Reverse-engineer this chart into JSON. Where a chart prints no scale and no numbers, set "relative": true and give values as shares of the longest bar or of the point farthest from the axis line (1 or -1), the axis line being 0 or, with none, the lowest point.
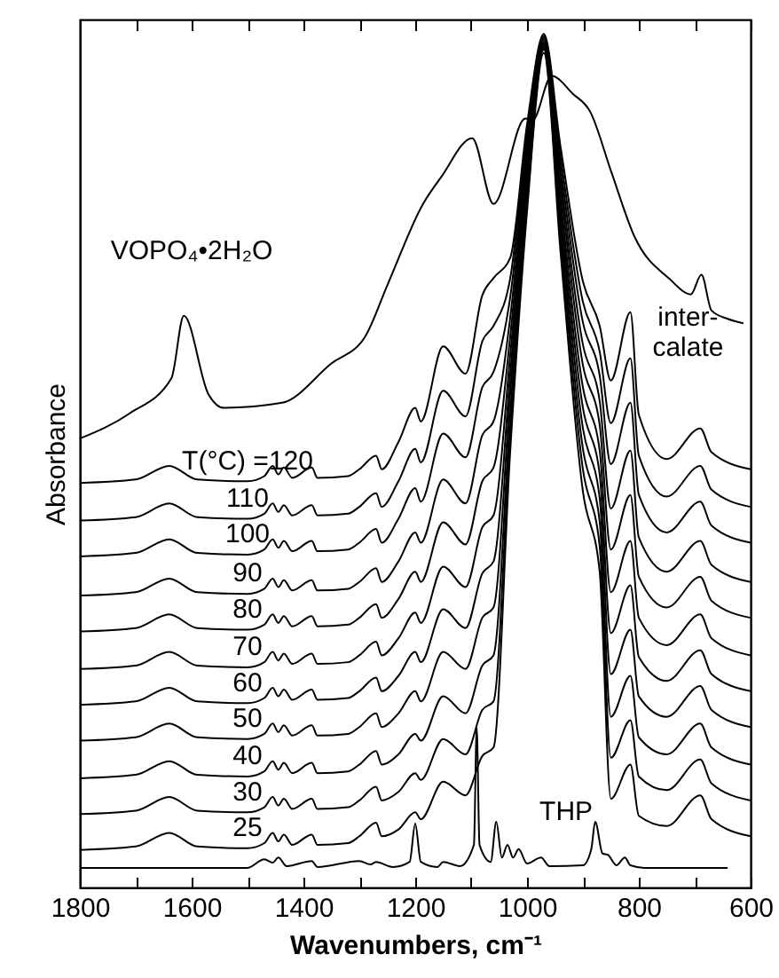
{
  "chart_data": {
    "type": "line",
    "relative": true,
    "xlabel": "Wavenumbers, cm⁻¹",
    "ylabel": "Absorbance",
    "xlim": [
      1800,
      600
    ],
    "xticks": [
      1800,
      {
        "value": 1700,
        "label": null
      },
      1600,
      {
        "value": 1500,
        "label": null
      },
      1400,
      {
        "value": 1300,
        "label": null
      },
      1200,
      {
        "value": 1100,
        "label": null
      },
      1000,
      {
        "value": 900,
        "label": null
      },
      800,
      {
        "value": 700,
        "label": null
      },
      600
    ],
    "annotations": [
      "inter-\ncalate"
    ],
    "x": [
      1800,
      1700,
      1640,
      1590,
      1500,
      1470,
      1455,
      1445,
      1435,
      1420,
      1385,
      1375,
      1320,
      1300,
      1270,
      1260,
      1230,
      1200,
      1190,
      1150,
      1110,
      1080,
      1060,
      1030,
      1000,
      970,
      940,
      900,
      870,
      850,
      815,
      800,
      750,
      690,
      670,
      600
    ],
    "series": [
      {
        "name": "VOPO₄•2H₂O",
        "color": "#000000",
        "x": [
          1800,
          1712,
          1636,
          1614,
          1570,
          1542,
          1438,
          1350,
          1290,
          1249,
          1186,
          1154,
          1098,
          1060,
          1003,
          990,
          956,
          918,
          887,
          849,
          808,
          745,
          707,
          688,
          670,
          640,
          613
        ],
        "values": [
          0.526,
          0.555,
          0.597,
          0.67,
          0.578,
          0.562,
          0.568,
          0.614,
          0.645,
          0.707,
          0.801,
          0.832,
          0.878,
          0.801,
          0.901,
          0.899,
          0.951,
          0.93,
          0.909,
          0.838,
          0.763,
          0.713,
          0.695,
          0.718,
          0.676,
          0.666,
          0.661
        ]
      },
      {
        "name": "T(°C) =120",
        "color": "#000000",
        "values": [
          0.474,
          0.478,
          0.494,
          0.478,
          0.476,
          0.482,
          0.494,
          0.484,
          0.492,
          0.48,
          0.492,
          0.48,
          0.482,
          0.49,
          0.506,
          0.49,
          0.522,
          0.562,
          0.546,
          0.634,
          0.602,
          0.694,
          0.714,
          0.738,
          0.894,
          1,
          0.868,
          0.71,
          0.658,
          0.594,
          0.674,
          0.554,
          0.502,
          0.538,
          0.51,
          0.49
        ]
      },
      {
        "name": "110",
        "color": "#000000",
        "values": [
          0.43,
          0.434,
          0.45,
          0.434,
          0.432,
          0.438,
          0.45,
          0.44,
          0.448,
          0.436,
          0.448,
          0.436,
          0.438,
          0.446,
          0.462,
          0.446,
          0.476,
          0.514,
          0.498,
          0.582,
          0.552,
          0.64,
          0.658,
          0.714,
          0.884,
          0.998,
          0.856,
          0.686,
          0.628,
          0.544,
          0.62,
          0.506,
          0.458,
          0.494,
          0.466,
          0.446
        ]
      },
      {
        "name": "100",
        "color": "#000000",
        "values": [
          0.388,
          0.392,
          0.408,
          0.392,
          0.39,
          0.396,
          0.408,
          0.398,
          0.406,
          0.394,
          0.406,
          0.394,
          0.396,
          0.404,
          0.42,
          0.404,
          0.432,
          0.468,
          0.452,
          0.532,
          0.504,
          0.586,
          0.604,
          0.692,
          0.874,
          0.996,
          0.844,
          0.662,
          0.6,
          0.496,
          0.568,
          0.46,
          0.416,
          0.452,
          0.424,
          0.404
        ]
      },
      {
        "name": "90",
        "color": "#000000",
        "values": [
          0.342,
          0.346,
          0.362,
          0.346,
          0.344,
          0.35,
          0.362,
          0.352,
          0.36,
          0.348,
          0.36,
          0.348,
          0.35,
          0.358,
          0.374,
          0.358,
          0.382,
          0.416,
          0.404,
          0.478,
          0.45,
          0.53,
          0.546,
          0.668,
          0.864,
          0.994,
          0.832,
          0.636,
          0.57,
          0.444,
          0.512,
          0.41,
          0.37,
          0.406,
          0.378,
          0.358
        ]
      },
      {
        "name": "80",
        "color": "#000000",
        "values": [
          0.3,
          0.304,
          0.32,
          0.304,
          0.302,
          0.308,
          0.32,
          0.31,
          0.318,
          0.306,
          0.318,
          0.306,
          0.308,
          0.316,
          0.332,
          0.316,
          0.338,
          0.37,
          0.358,
          0.428,
          0.402,
          0.476,
          0.492,
          0.646,
          0.854,
          0.992,
          0.82,
          0.612,
          0.542,
          0.396,
          0.46,
          0.364,
          0.328,
          0.364,
          0.336,
          0.316
        ]
      },
      {
        "name": "70",
        "color": "#000000",
        "values": [
          0.256,
          0.26,
          0.276,
          0.26,
          0.258,
          0.264,
          0.276,
          0.266,
          0.274,
          0.262,
          0.274,
          0.262,
          0.264,
          0.272,
          0.288,
          0.272,
          0.292,
          0.322,
          0.31,
          0.376,
          0.352,
          0.422,
          0.436,
          0.624,
          0.844,
          0.99,
          0.806,
          0.586,
          0.512,
          0.346,
          0.406,
          0.316,
          0.284,
          0.32,
          0.292,
          0.272
        ]
      },
      {
        "name": "60",
        "color": "#000000",
        "values": [
          0.214,
          0.218,
          0.234,
          0.218,
          0.216,
          0.222,
          0.234,
          0.224,
          0.232,
          0.22,
          0.232,
          0.22,
          0.222,
          0.23,
          0.246,
          0.23,
          0.248,
          0.276,
          0.264,
          0.326,
          0.304,
          0.368,
          0.382,
          0.602,
          0.834,
          0.988,
          0.794,
          0.562,
          0.484,
          0.298,
          0.354,
          0.27,
          0.242,
          0.278,
          0.25,
          0.23
        ]
      },
      {
        "name": "50",
        "color": "#000000",
        "values": [
          0.172,
          0.176,
          0.192,
          0.176,
          0.174,
          0.18,
          0.192,
          0.182,
          0.19,
          0.178,
          0.19,
          0.178,
          0.18,
          0.188,
          0.204,
          0.188,
          0.204,
          0.23,
          0.218,
          0.276,
          0.256,
          0.316,
          0.328,
          0.58,
          0.824,
          0.986,
          0.782,
          0.538,
          0.456,
          0.25,
          0.302,
          0.224,
          0.2,
          0.236,
          0.208,
          0.188
        ]
      },
      {
        "name": "40",
        "color": "#000000",
        "values": [
          0.128,
          0.132,
          0.148,
          0.132,
          0.13,
          0.136,
          0.148,
          0.138,
          0.146,
          0.134,
          0.146,
          0.134,
          0.136,
          0.144,
          0.16,
          0.144,
          0.156,
          0.18,
          0.172,
          0.224,
          0.204,
          0.26,
          0.272,
          0.556,
          0.812,
          0.984,
          0.77,
          0.514,
          0.428,
          0.2,
          0.248,
          0.176,
          0.156,
          0.192,
          0.164,
          0.144
        ]
      },
      {
        "name": "30",
        "color": "#000000",
        "values": [
          0.086,
          0.09,
          0.106,
          0.09,
          0.088,
          0.094,
          0.106,
          0.096,
          0.104,
          0.092,
          0.104,
          0.092,
          0.094,
          0.102,
          0.118,
          0.102,
          0.112,
          0.134,
          0.126,
          0.174,
          0.156,
          0.208,
          0.218,
          0.534,
          0.802,
          0.982,
          0.758,
          0.49,
          0.4,
          0.152,
          0.196,
          0.13,
          0.114,
          0.15,
          0.122,
          0.102
        ]
      },
      {
        "name": "25",
        "color": "#000000",
        "values": [
          0.044,
          0.048,
          0.064,
          0.048,
          0.046,
          0.052,
          0.064,
          0.054,
          0.062,
          0.05,
          0.062,
          0.05,
          0.052,
          0.06,
          0.076,
          0.06,
          0.068,
          0.088,
          0.08,
          0.124,
          0.108,
          0.154,
          0.164,
          0.512,
          0.792,
          0.978,
          0.744,
          0.464,
          0.37,
          0.104,
          0.144,
          0.084,
          0.072,
          0.108,
          0.08,
          0.06
        ]
      },
      {
        "name": "THP",
        "color": "#000000",
        "x": [
          1800,
          1500,
          1470,
          1455,
          1445,
          1430,
          1385,
          1375,
          1300,
          1280,
          1270,
          1240,
          1210,
          1200,
          1190,
          1160,
          1150,
          1120,
          1095,
          1090,
          1085,
          1065,
          1055,
          1045,
          1035,
          1025,
          1015,
          1000,
          975,
          960,
          900,
          885,
          878,
          865,
          855,
          840,
          825,
          815,
          790,
          641
        ],
        "values": [
          0.023,
          0.023,
          0.033,
          0.029,
          0.035,
          0.025,
          0.031,
          0.024,
          0.031,
          0.027,
          0.03,
          0.024,
          0.03,
          0.075,
          0.03,
          0.024,
          0.03,
          0.025,
          0.05,
          0.187,
          0.05,
          0.03,
          0.077,
          0.035,
          0.05,
          0.035,
          0.045,
          0.028,
          0.035,
          0.025,
          0.026,
          0.045,
          0.077,
          0.04,
          0.038,
          0.026,
          0.035,
          0.026,
          0.023,
          0.023
        ]
      }
    ]
  }
}
